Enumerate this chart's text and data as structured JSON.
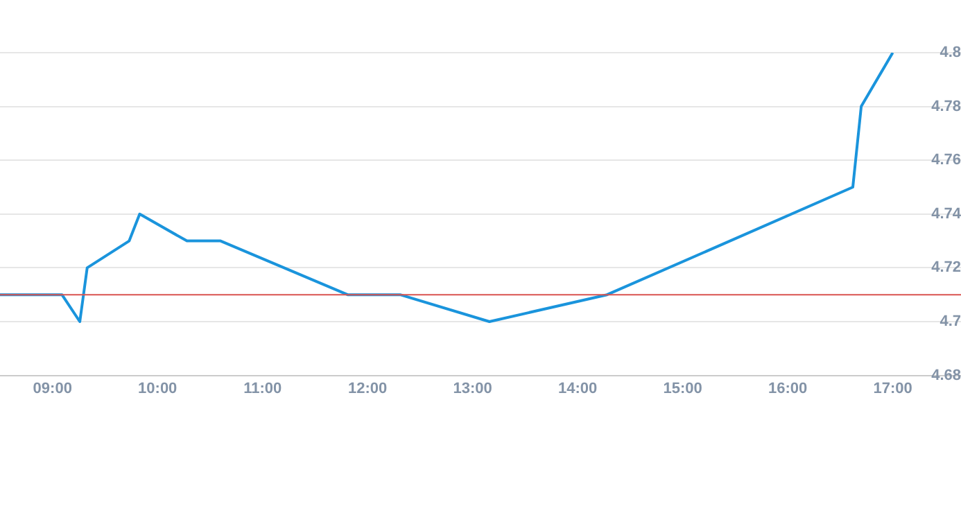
{
  "chart_data": {
    "type": "line",
    "x": [
      8.5,
      9.0,
      9.09,
      9.26,
      9.33,
      9.73,
      9.83,
      10.28,
      10.6,
      11.81,
      12.31,
      13.16,
      14.28,
      16.62,
      16.7,
      17.0
    ],
    "series": [
      {
        "color": "#1a94dc",
        "values": [
          4.71,
          4.71,
          4.71,
          4.7,
          4.72,
          4.73,
          4.74,
          4.73,
          4.73,
          4.71,
          4.71,
          4.7,
          4.71,
          4.75,
          4.78,
          4.8
        ]
      }
    ],
    "xlim": [
      8.5,
      17.65
    ],
    "xticks": [
      {
        "value": 9,
        "label": "09:00"
      },
      {
        "value": 10,
        "label": "10:00"
      },
      {
        "value": 11,
        "label": "11:00"
      },
      {
        "value": 12,
        "label": "12:00"
      },
      {
        "value": 13,
        "label": "13:00"
      },
      {
        "value": 14,
        "label": "14:00"
      },
      {
        "value": 15,
        "label": "15:00"
      },
      {
        "value": 16,
        "label": "16:00"
      },
      {
        "value": 17,
        "label": "17:00"
      }
    ],
    "ylim": [
      4.68,
      4.8
    ],
    "yticks": [
      4.68,
      4.7,
      4.72,
      4.74,
      4.76,
      4.78,
      4.8
    ],
    "ref_lines": [
      {
        "axis": "y",
        "value": 4.71,
        "color": "#d9534f"
      }
    ],
    "grid": "y",
    "legend": false,
    "marker": "none",
    "line_style": "solid"
  }
}
